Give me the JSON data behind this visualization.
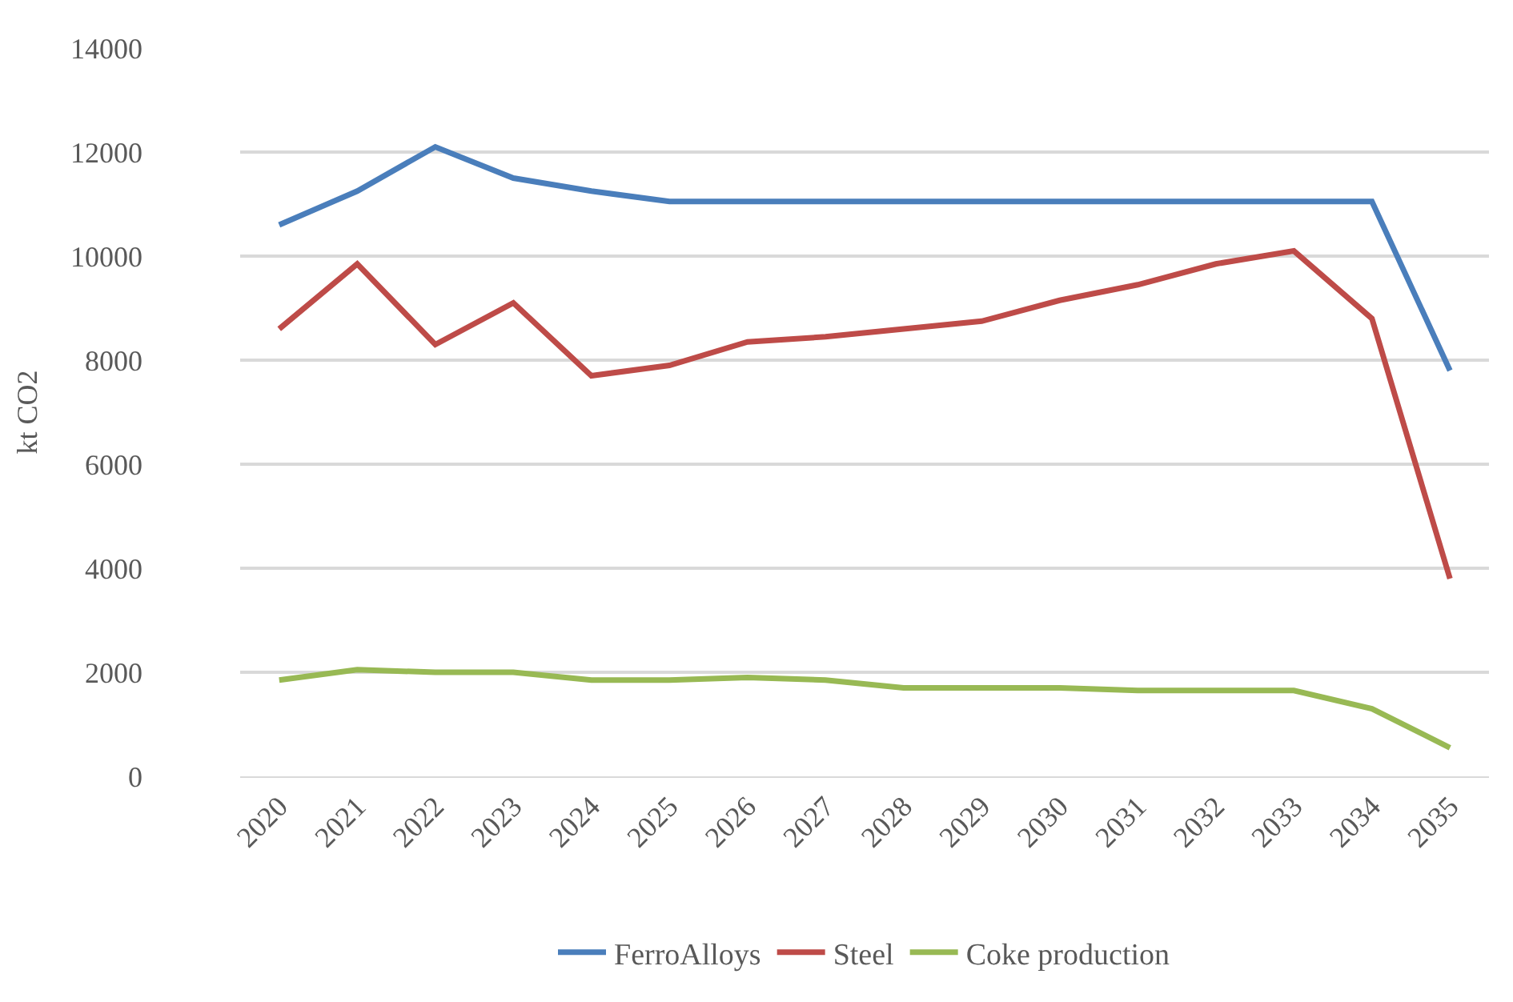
{
  "chart_data": {
    "type": "line",
    "ylabel": "kt CO2",
    "categories": [
      "2020",
      "2021",
      "2022",
      "2023",
      "2024",
      "2025",
      "2026",
      "2027",
      "2028",
      "2029",
      "2030",
      "2031",
      "2032",
      "2033",
      "2034",
      "2035"
    ],
    "series": [
      {
        "name": "FerroAlloys",
        "color": "#4a7ebb",
        "values": [
          10600,
          11250,
          12100,
          11500,
          11250,
          11050,
          11050,
          11050,
          11050,
          11050,
          11050,
          11050,
          11050,
          11050,
          11050,
          7800
        ]
      },
      {
        "name": "Steel",
        "color": "#be4b48",
        "values": [
          8600,
          9850,
          8300,
          9100,
          7700,
          7900,
          8350,
          8450,
          8600,
          8750,
          9150,
          9450,
          9850,
          10100,
          8800,
          3800
        ]
      },
      {
        "name": "Coke production",
        "color": "#98b954",
        "values": [
          1850,
          2050,
          2000,
          2000,
          1850,
          1850,
          1900,
          1850,
          1700,
          1700,
          1700,
          1650,
          1650,
          1650,
          1300,
          550
        ]
      }
    ],
    "ylim": [
      0,
      14000
    ],
    "yticks": [
      0,
      2000,
      4000,
      6000,
      8000,
      10000,
      12000,
      14000
    ],
    "grid": "y",
    "legend": "bottom",
    "marker": "none",
    "line_style": "solid"
  }
}
